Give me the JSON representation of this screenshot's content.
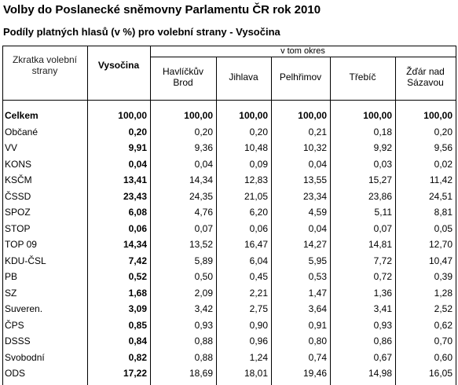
{
  "title": "Volby do Poslanecké sněmovny Parlamentu ČR rok 2010",
  "subtitle": "Podíly platných hlasů (v %) pro volební strany - Vysočina",
  "table": {
    "header": {
      "party": "Zkratka volební\nstrany",
      "region": "Vysočina",
      "group": "v tom okres",
      "districts": [
        "Havlíčkův\nBrod",
        "Jihlava",
        "Pelhřimov",
        "Třebíč",
        "Žďár nad\nSázavou"
      ]
    },
    "rows": [
      [
        "Celkem",
        "100,00",
        "100,00",
        "100,00",
        "100,00",
        "100,00",
        "100,00"
      ],
      [
        "Občané",
        "0,20",
        "0,20",
        "0,20",
        "0,21",
        "0,18",
        "0,20"
      ],
      [
        "VV",
        "9,91",
        "9,36",
        "10,48",
        "10,32",
        "9,92",
        "9,56"
      ],
      [
        "KONS",
        "0,04",
        "0,04",
        "0,09",
        "0,04",
        "0,03",
        "0,02"
      ],
      [
        "KSČM",
        "13,41",
        "14,34",
        "12,83",
        "13,55",
        "15,27",
        "11,42"
      ],
      [
        "ČSSD",
        "23,43",
        "24,35",
        "21,05",
        "23,34",
        "23,86",
        "24,51"
      ],
      [
        "SPOZ",
        "6,08",
        "4,76",
        "6,20",
        "4,59",
        "5,11",
        "8,81"
      ],
      [
        "STOP",
        "0,06",
        "0,07",
        "0,06",
        "0,04",
        "0,07",
        "0,05"
      ],
      [
        "TOP 09",
        "14,34",
        "13,52",
        "16,47",
        "14,27",
        "14,81",
        "12,70"
      ],
      [
        "KDU-ČSL",
        "7,42",
        "5,89",
        "6,04",
        "5,95",
        "7,72",
        "10,47"
      ],
      [
        "PB",
        "0,52",
        "0,50",
        "0,45",
        "0,53",
        "0,72",
        "0,39"
      ],
      [
        "SZ",
        "1,68",
        "2,09",
        "2,21",
        "1,47",
        "1,36",
        "1,28"
      ],
      [
        "Suveren.",
        "3,09",
        "3,42",
        "2,75",
        "3,64",
        "3,41",
        "2,52"
      ],
      [
        "ČPS",
        "0,85",
        "0,93",
        "0,90",
        "0,91",
        "0,93",
        "0,62"
      ],
      [
        "DSSS",
        "0,84",
        "0,88",
        "0,96",
        "0,80",
        "0,86",
        "0,70"
      ],
      [
        "Svobodní",
        "0,82",
        "0,88",
        "1,24",
        "0,74",
        "0,67",
        "0,60"
      ],
      [
        "ODS",
        "17,22",
        "18,69",
        "18,01",
        "19,46",
        "14,98",
        "16,05"
      ]
    ]
  }
}
